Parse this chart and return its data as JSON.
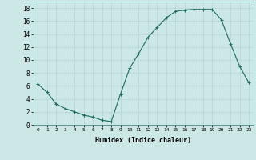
{
  "x": [
    0,
    1,
    2,
    3,
    4,
    5,
    6,
    7,
    8,
    9,
    10,
    11,
    12,
    13,
    14,
    15,
    16,
    17,
    18,
    19,
    20,
    21,
    22,
    23
  ],
  "y": [
    6.3,
    5.0,
    3.2,
    2.5,
    2.0,
    1.5,
    1.2,
    0.7,
    0.5,
    4.7,
    8.7,
    11.0,
    13.5,
    15.0,
    16.5,
    17.5,
    17.7,
    17.8,
    17.8,
    17.8,
    16.2,
    12.5,
    9.0,
    6.5
  ],
  "xlabel": "Humidex (Indice chaleur)",
  "ylim": [
    0,
    19
  ],
  "xlim": [
    -0.5,
    23.5
  ],
  "yticks": [
    0,
    2,
    4,
    6,
    8,
    10,
    12,
    14,
    16,
    18
  ],
  "xticks": [
    0,
    1,
    2,
    3,
    4,
    5,
    6,
    7,
    8,
    9,
    10,
    11,
    12,
    13,
    14,
    15,
    16,
    17,
    18,
    19,
    20,
    21,
    22,
    23
  ],
  "line_color": "#1a6b5a",
  "marker": "+",
  "bg_color": "#cce8e6",
  "grid_color": "#b8d4d2"
}
